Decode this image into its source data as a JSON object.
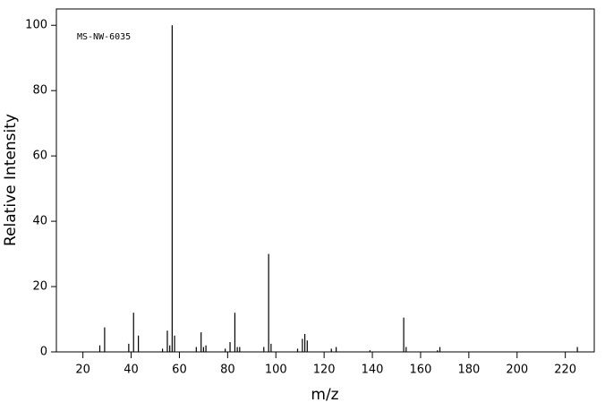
{
  "chart_data": {
    "type": "stem",
    "annotation": "MS-NW-6035",
    "xlabel": "m/z",
    "ylabel": "Relative Intensity",
    "x": [
      27,
      29,
      39,
      41,
      43,
      53,
      55,
      56,
      57,
      58,
      67,
      69,
      70,
      71,
      79,
      81,
      83,
      84,
      85,
      95,
      97,
      98,
      109,
      111,
      112,
      113,
      123,
      125,
      139,
      153,
      154,
      167,
      168,
      225
    ],
    "values": [
      2,
      7.5,
      2.5,
      12,
      5,
      1,
      6.5,
      2,
      100,
      5,
      1.5,
      6,
      1.5,
      2,
      1,
      3,
      12,
      1.5,
      1.5,
      1.5,
      30,
      2.5,
      1,
      4,
      5.5,
      3.5,
      1,
      1.5,
      0.5,
      10.5,
      1.5,
      0.5,
      1.5,
      1.5
    ],
    "color": "#000000",
    "xlim": [
      9,
      232
    ],
    "ylim": [
      0,
      105
    ],
    "xticks": [
      20,
      40,
      60,
      80,
      100,
      120,
      140,
      160,
      180,
      200,
      220
    ],
    "yticks": [
      0,
      20,
      40,
      60,
      80,
      100
    ]
  }
}
